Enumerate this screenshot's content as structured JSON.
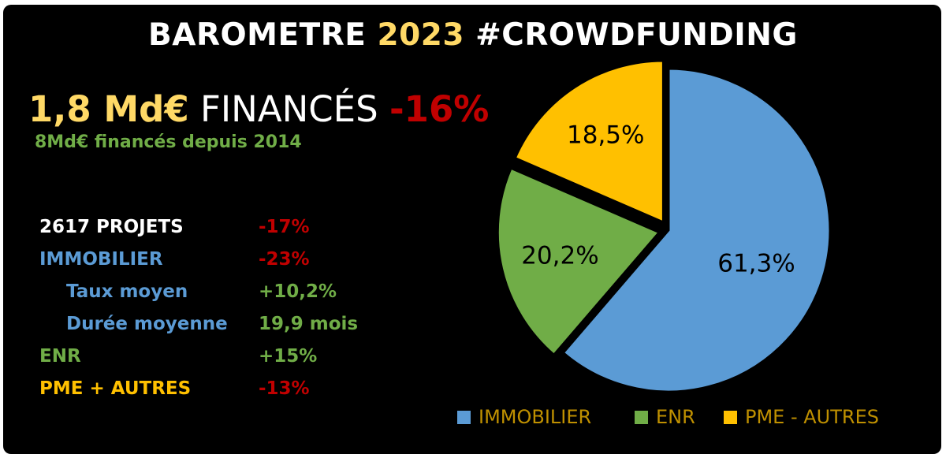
{
  "title": {
    "prefix": "BAROMETRE",
    "year": "2023",
    "suffix": "#CROWDFUNDING"
  },
  "headline": {
    "amount": "1,8 Md€",
    "label": "FINANCÉS",
    "change": "-16%"
  },
  "subtitle": "8Md€ financés depuis 2014",
  "stats": [
    {
      "label": "2617 PROJETS",
      "value": "-17%"
    },
    {
      "label": "IMMOBILIER",
      "value": "-23%"
    },
    {
      "label": "Taux moyen",
      "value": "+10,2%"
    },
    {
      "label": "Durée moyenne",
      "value": "19,9 mois"
    },
    {
      "label": "ENR",
      "value": "+15%"
    },
    {
      "label": "PME + AUTRES",
      "value": "-13%"
    }
  ],
  "colors": {
    "immobilier": "#5b9bd5",
    "enr": "#70ad47",
    "pme": "#ffc000",
    "negative": "#c00000",
    "title_year": "#ffd966"
  },
  "chart_data": {
    "type": "pie",
    "categories": [
      "IMMOBILIER",
      "ENR",
      "PME - AUTRES"
    ],
    "values": [
      61.3,
      20.2,
      18.5
    ],
    "labels": [
      "61,3%",
      "20,2%",
      "18,5%"
    ],
    "colors": [
      "#5b9bd5",
      "#70ad47",
      "#ffc000"
    ],
    "exploded": true,
    "legend": "bottom"
  }
}
